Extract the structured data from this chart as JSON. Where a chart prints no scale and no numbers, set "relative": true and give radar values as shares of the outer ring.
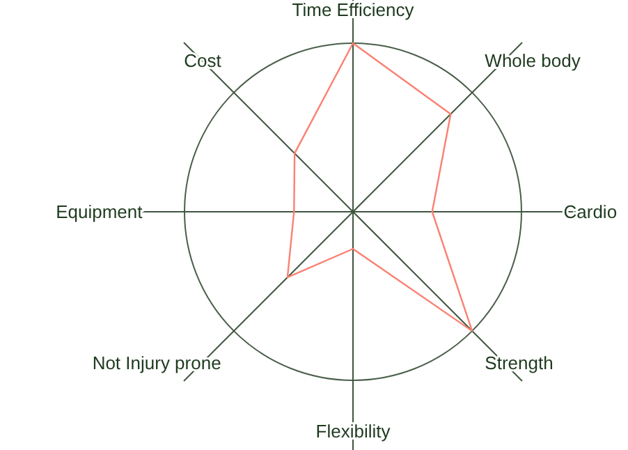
{
  "chart_data": {
    "type": "radar",
    "relative": true,
    "categories": [
      "Time Efficiency",
      "Whole body",
      "Cardio",
      "Strength",
      "Flexibility",
      "Not Injury prone",
      "Equipment",
      "Cost"
    ],
    "series": [
      {
        "color": "#fa8072",
        "values": [
          1,
          0.82,
          0.47,
          1,
          0.22,
          0.55,
          0.35,
          0.49
        ]
      }
    ]
  }
}
